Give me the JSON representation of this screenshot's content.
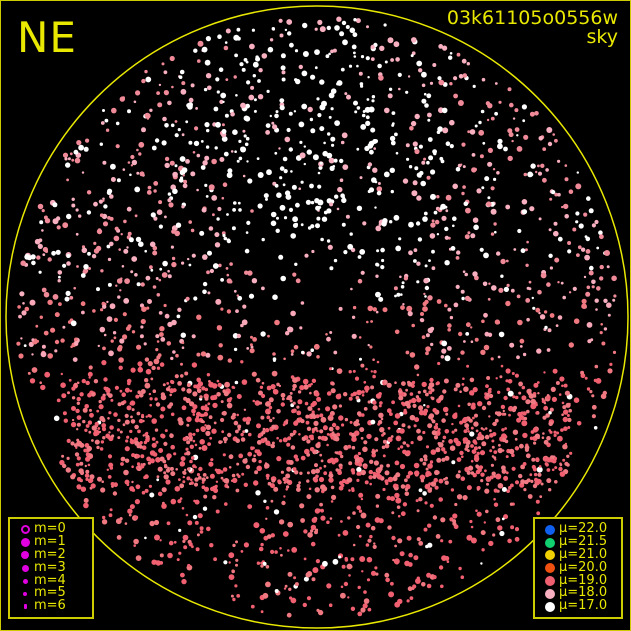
{
  "direction_label": "NE",
  "header": {
    "frame_id": "03k61105o0556w",
    "mode": "sky"
  },
  "horizon_color": "#e8e800",
  "magnitude_legend": [
    {
      "label": "m=0",
      "style": "ring"
    },
    {
      "label": "m=1",
      "style": "filled"
    },
    {
      "label": "m=2",
      "style": "filled"
    },
    {
      "label": "m=3",
      "style": "filled"
    },
    {
      "label": "m=4",
      "style": "filled"
    },
    {
      "label": "m=5",
      "style": "filled"
    },
    {
      "label": "m=6",
      "style": "filled"
    }
  ],
  "magnitude_legend_color": "#e000e0",
  "sky_brightness_legend": [
    {
      "label": "μ=22.0",
      "color": "#1060f0"
    },
    {
      "label": "μ=21.5",
      "color": "#10d070"
    },
    {
      "label": "μ=21.0",
      "color": "#f0d000"
    },
    {
      "label": "μ=20.0",
      "color": "#f05010"
    },
    {
      "label": "μ=19.0",
      "color": "#f06070"
    },
    {
      "label": "μ=18.0",
      "color": "#f8b0c0"
    },
    {
      "label": "μ=17.0",
      "color": "#ffffff"
    }
  ]
}
